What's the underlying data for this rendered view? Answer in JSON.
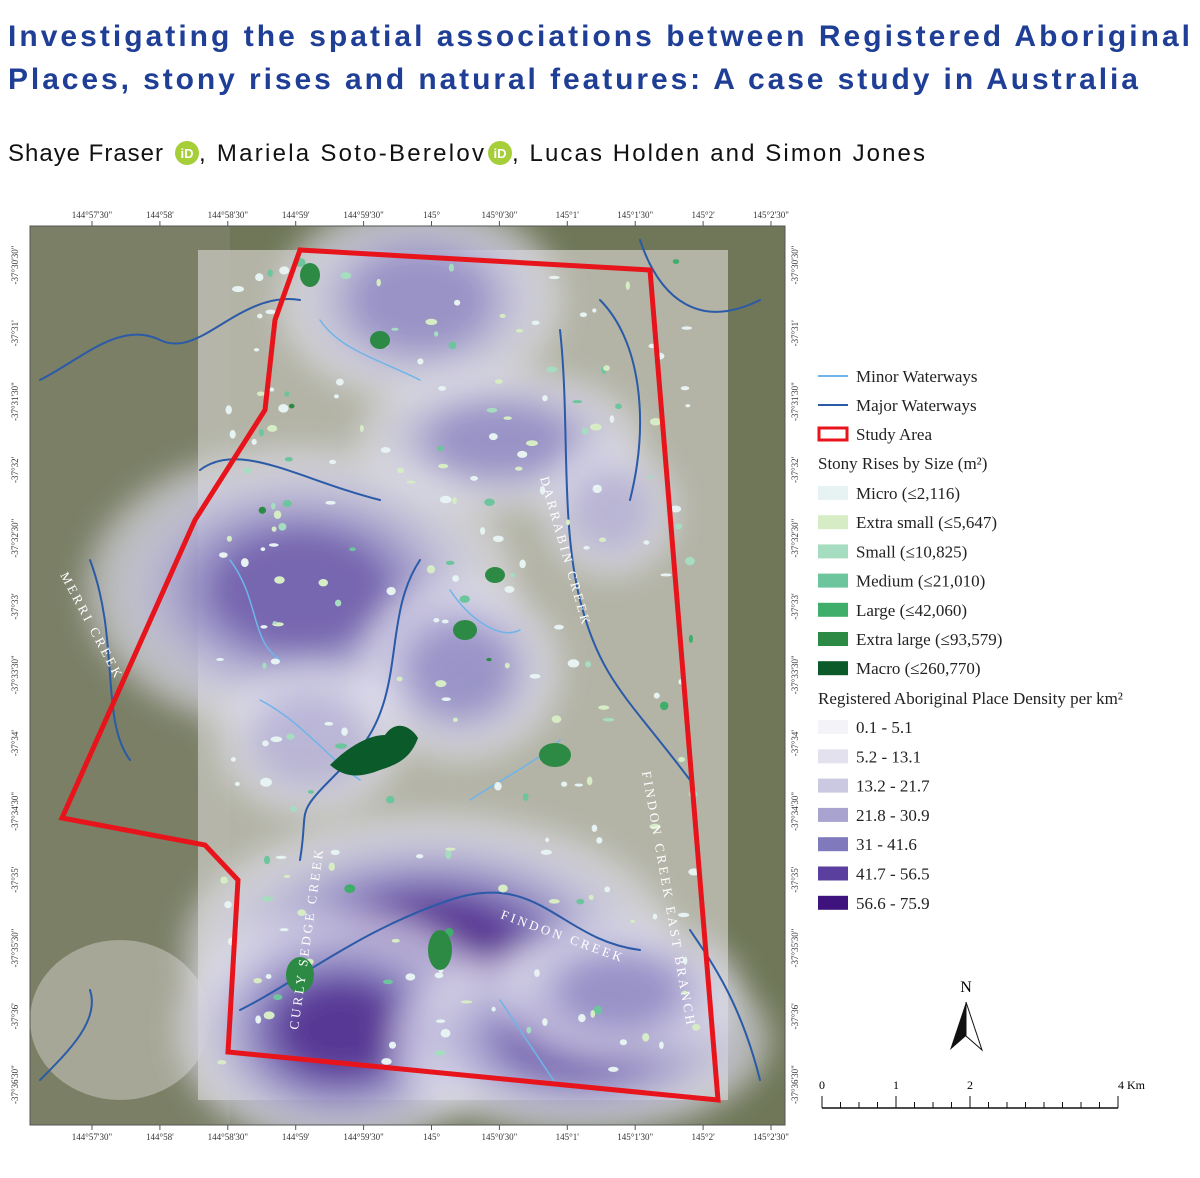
{
  "header": {
    "title_lines": [
      "Investigating the spatial associations between Registered Aboriginal",
      "Places, stony rises and natural features: A case study in Australia"
    ],
    "authors": [
      "Shaye Fraser",
      ", Mariela Soto-Berelov",
      ", Lucas Holden and Simon Jones"
    ],
    "orcid": "iD"
  },
  "map": {
    "top_ticks": [
      "144°57'30\"",
      "144°58'",
      "144°58'30\"",
      "144°59'",
      "144°59'30\"",
      "145°",
      "145°0'30\"",
      "145°1'",
      "145°1'30\"",
      "145°2'",
      "145°2'30\""
    ],
    "bottom_ticks": [
      "144°57'30\"",
      "144°58'",
      "144°58'30\"",
      "144°59'",
      "144°59'30\"",
      "145°",
      "145°0'30\"",
      "145°1'",
      "145°1'30\"",
      "145°2'",
      "145°2'30\""
    ],
    "left_ticks": [
      "-37°30'30\"",
      "-37°31'",
      "-37°31'30\"",
      "-37°32'",
      "-37°32'30\"",
      "-37°33'",
      "-37°33'30\"",
      "-37°34'",
      "-37°34'30\"",
      "-37°35'",
      "-37°35'30\"",
      "-37°36'",
      "-37°36'30\""
    ],
    "right_ticks": [
      "-37°30'30\"",
      "-37°31'",
      "-37°31'30\"",
      "-37°32'",
      "-37°32'30\"",
      "-37°33'",
      "-37°33'30\"",
      "-37°34'",
      "-37°34'30\"",
      "-37°35'",
      "-37°35'30\"",
      "-37°36'",
      "-37°36'30\""
    ],
    "stream_labels": [
      "MERRI CREEK",
      "DARRABIN CREEK",
      "FINDON CREEK",
      "FINDON CREEK EAST BRANCH",
      "CURLY SEDGE CREEK"
    ]
  },
  "legend": {
    "lines": [
      "Minor Waterways",
      "Major Waterways",
      "Study Area"
    ],
    "stony_title": "Stony Rises by Size (m²)",
    "stony": [
      "Micro (≤2,116)",
      "Extra small (≤5,647)",
      "Small (≤10,825)",
      "Medium (≤21,010)",
      "Large (≤42,060)",
      "Extra large (≤93,579)",
      "Macro (≤260,770)"
    ],
    "density_title": "Registered Aboriginal Place Density per km²",
    "density": [
      "0.1 - 5.1",
      "5.2 - 13.1",
      "13.2 - 21.7",
      "21.8 - 30.9",
      "31 - 41.6",
      "41.7 - 56.5",
      "56.6 - 75.9"
    ]
  },
  "north": "N",
  "scale": [
    "0",
    "1",
    "2",
    "4 Km"
  ]
}
